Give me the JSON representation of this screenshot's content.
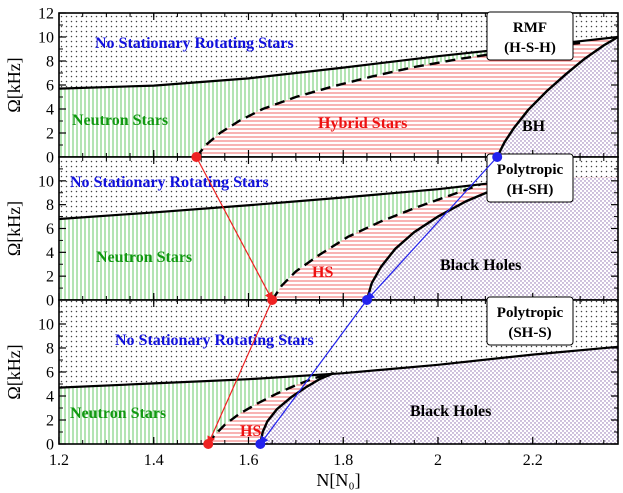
{
  "chart_data": {
    "type": "line",
    "xlabel": "N[N₀]",
    "xticks": [
      "1.2",
      "1.4",
      "1.6",
      "1.8",
      "2",
      "2.2"
    ],
    "xlim": [
      1.2,
      2.38
    ],
    "colors": {
      "neutron": "#22aa22",
      "hybrid": "#ee2222",
      "blackhole": "#8866aa",
      "label_blue": "#1111dd",
      "label_green": "#119911",
      "label_red": "#ee1111",
      "arrow_red": "#ee2222",
      "arrow_blue": "#2222ee"
    },
    "panels": [
      {
        "name": "top",
        "ylabel": "Ω[kHz]",
        "ylim": [
          0,
          12
        ],
        "yticks": [
          "0",
          "2",
          "4",
          "6",
          "8",
          "10",
          "12"
        ],
        "model_label": [
          "RMF",
          "(H-S-H)"
        ],
        "labels": {
          "no_stationary": "No Stationary Rotating Stars",
          "neutron": "Neutron Stars",
          "hybrid": "Hybrid Stars",
          "bh": "BH"
        },
        "kepler": {
          "x": [
            1.2,
            1.4,
            1.6,
            1.8,
            2.0,
            2.2,
            2.3,
            2.38
          ],
          "y": [
            5.7,
            5.95,
            6.55,
            7.45,
            8.4,
            9.25,
            9.65,
            10.0
          ]
        },
        "hybrid_boundary": {
          "x": [
            1.49,
            1.51,
            1.54,
            1.58,
            1.63,
            1.7,
            1.78,
            1.86,
            1.95,
            2.05,
            2.15,
            2.25,
            2.3
          ],
          "y": [
            0,
            1.0,
            2.0,
            3.0,
            4.0,
            5.0,
            5.9,
            6.7,
            7.5,
            8.2,
            8.8,
            9.3,
            9.5
          ]
        },
        "bh_boundary": {
          "x": [
            2.125,
            2.14,
            2.16,
            2.19,
            2.23,
            2.27,
            2.31,
            2.35,
            2.38
          ],
          "y": [
            0,
            1.2,
            2.4,
            3.9,
            5.5,
            6.9,
            8.2,
            9.3,
            10.0
          ]
        },
        "points": [
          {
            "x": 1.49,
            "y": 0,
            "color": "red"
          },
          {
            "x": 2.125,
            "y": 0,
            "color": "blue"
          }
        ]
      },
      {
        "name": "middle",
        "ylabel": "Ω[kHz]",
        "ylim": [
          0,
          12
        ],
        "yticks": [
          "0",
          "2",
          "4",
          "6",
          "8",
          "10"
        ],
        "model_label": [
          "Polytropic",
          "(H-SH)"
        ],
        "labels": {
          "no_stationary": "No Stationary Rotating Stars",
          "neutron": "Neutron Stars",
          "hybrid": "HS",
          "bh": "Black Holes"
        },
        "kepler": {
          "x": [
            1.2,
            1.4,
            1.6,
            1.8,
            2.0,
            2.1,
            2.2
          ],
          "y": [
            6.8,
            7.35,
            7.95,
            8.6,
            9.3,
            9.75,
            10.3
          ]
        },
        "hybrid_boundary": {
          "x": [
            1.65,
            1.67,
            1.7,
            1.75,
            1.81,
            1.88,
            1.95,
            2.02,
            2.09
          ],
          "y": [
            0,
            1.2,
            2.4,
            3.8,
            5.3,
            6.6,
            7.7,
            8.7,
            9.7
          ]
        },
        "bh_boundary": {
          "x": [
            1.85,
            1.86,
            1.88,
            1.91,
            1.95,
            2.0,
            2.06,
            2.12,
            2.17,
            2.2
          ],
          "y": [
            0,
            1.4,
            2.8,
            4.3,
            5.7,
            7.0,
            8.3,
            9.3,
            10.0,
            10.4
          ]
        },
        "points": [
          {
            "x": 1.65,
            "y": 0,
            "color": "red"
          },
          {
            "x": 1.85,
            "y": 0,
            "color": "blue"
          }
        ]
      },
      {
        "name": "bottom",
        "ylabel": "Ω[kHz]",
        "ylim": [
          0,
          12
        ],
        "yticks": [
          "0",
          "2",
          "4",
          "6",
          "8",
          "10"
        ],
        "model_label": [
          "Polytropic",
          "(SH-S)"
        ],
        "labels": {
          "no_stationary": "No Stationary Rotating Stars",
          "neutron": "Neutron Stars",
          "hybrid": "HS",
          "bh": "Black Holes"
        },
        "kepler": {
          "x": [
            1.2,
            1.4,
            1.6,
            1.8,
            2.0,
            2.2,
            2.38
          ],
          "y": [
            4.7,
            5.05,
            5.4,
            5.9,
            6.6,
            7.45,
            8.1
          ]
        },
        "hybrid_boundary": {
          "x": [
            1.515,
            1.53,
            1.55,
            1.58,
            1.62,
            1.66,
            1.7,
            1.74,
            1.78
          ],
          "y": [
            0,
            0.8,
            1.6,
            2.5,
            3.4,
            4.2,
            4.9,
            5.5,
            5.9
          ]
        },
        "bh_boundary": {
          "x": [
            1.625,
            1.63,
            1.64,
            1.66,
            1.69,
            1.72,
            1.75,
            1.78
          ],
          "y": [
            0,
            1.0,
            1.9,
            2.9,
            3.9,
            4.7,
            5.4,
            5.9
          ]
        },
        "points": [
          {
            "x": 1.515,
            "y": 0,
            "color": "red"
          },
          {
            "x": 1.625,
            "y": 0,
            "color": "blue"
          }
        ]
      }
    ],
    "arrows": [
      {
        "from": {
          "panel": 0,
          "x": 1.49,
          "y": 0
        },
        "to": {
          "panel": 1,
          "x": 1.65,
          "y": 0
        },
        "color": "red"
      },
      {
        "from": {
          "panel": 1,
          "x": 1.65,
          "y": 0
        },
        "to": {
          "panel": 2,
          "x": 1.515,
          "y": 0
        },
        "color": "red"
      },
      {
        "from": {
          "panel": 0,
          "x": 2.125,
          "y": 0
        },
        "to": {
          "panel": 1,
          "x": 1.85,
          "y": 0
        },
        "color": "blue"
      },
      {
        "from": {
          "panel": 1,
          "x": 1.85,
          "y": 0
        },
        "to": {
          "panel": 2,
          "x": 1.625,
          "y": 0
        },
        "color": "blue"
      }
    ]
  }
}
